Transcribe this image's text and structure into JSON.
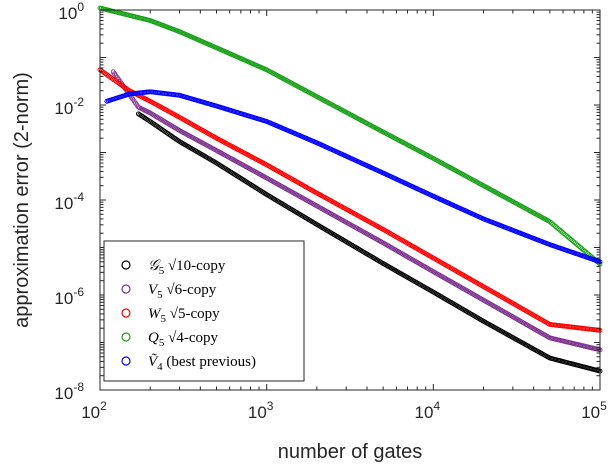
{
  "chart_data": {
    "type": "scatter",
    "xlabel": "number of gates",
    "ylabel": "approximation error (2-norm)",
    "xscale": "log",
    "yscale": "log",
    "xlim": [
      100,
      100000
    ],
    "ylim": [
      1e-08,
      1
    ],
    "x_ticks": [
      {
        "base": "10",
        "exp": "2"
      },
      {
        "base": "10",
        "exp": "3"
      },
      {
        "base": "10",
        "exp": "4"
      },
      {
        "base": "10",
        "exp": "5"
      }
    ],
    "y_ticks": [
      {
        "base": "10",
        "exp": "0"
      },
      {
        "base": "10",
        "exp": "-2"
      },
      {
        "base": "10",
        "exp": "-4"
      },
      {
        "base": "10",
        "exp": "-6"
      },
      {
        "base": "10",
        "exp": "-8"
      }
    ],
    "legend_position": "bottom-left",
    "marker": "open-circle",
    "series": [
      {
        "name_parts": [
          "𝒢",
          "5",
          " √10-copy"
        ],
        "color": "#000000",
        "points": [
          [
            170,
            0.0065
          ],
          [
            200,
            0.0045
          ],
          [
            300,
            0.0017
          ],
          [
            500,
            0.0006
          ],
          [
            1000,
            0.00013
          ],
          [
            2000,
            3.05e-05
          ],
          [
            5000,
            4.6e-06
          ],
          [
            10000,
            1.15e-06
          ],
          [
            20000,
            2.8e-07
          ],
          [
            50000,
            4.7e-08
          ],
          [
            100000,
            2.5e-08
          ]
        ]
      },
      {
        "name_parts": [
          "V",
          "5",
          " √6-copy"
        ],
        "color": "#7e2f8e",
        "points": [
          [
            120,
            0.05
          ],
          [
            170,
            0.009
          ],
          [
            200,
            0.0068
          ],
          [
            300,
            0.0029
          ],
          [
            500,
            0.0011
          ],
          [
            1000,
            0.00029
          ],
          [
            2000,
            7.5e-05
          ],
          [
            5000,
            1.25e-05
          ],
          [
            10000,
            3.1e-06
          ],
          [
            20000,
            7.8e-07
          ],
          [
            50000,
            1.25e-07
          ],
          [
            100000,
            7e-08
          ]
        ]
      },
      {
        "name_parts": [
          "W",
          "5",
          " √5-copy"
        ],
        "color": "#ff0000",
        "points": [
          [
            100,
            0.055
          ],
          [
            150,
            0.02
          ],
          [
            200,
            0.012
          ],
          [
            300,
            0.0055
          ],
          [
            500,
            0.002
          ],
          [
            1000,
            0.00055
          ],
          [
            2000,
            0.00014
          ],
          [
            5000,
            2.4e-05
          ],
          [
            10000,
            6e-06
          ],
          [
            20000,
            1.5e-06
          ],
          [
            50000,
            2.4e-07
          ],
          [
            100000,
            1.8e-07
          ]
        ]
      },
      {
        "name_parts": [
          "Q",
          "5",
          " √4-copy"
        ],
        "color": "#16a016",
        "points": [
          [
            100,
            1.1
          ],
          [
            200,
            0.6
          ],
          [
            300,
            0.35
          ],
          [
            500,
            0.16
          ],
          [
            1000,
            0.055
          ],
          [
            2000,
            0.015
          ],
          [
            5000,
            0.0027
          ],
          [
            10000,
            0.00075
          ],
          [
            20000,
            0.0002
          ],
          [
            50000,
            3.5e-05
          ],
          [
            100000,
            4.5e-06
          ]
        ]
      },
      {
        "name_parts": [
          "Ṽ",
          "4",
          " (best previous)"
        ],
        "color": "#0000ff",
        "points": [
          [
            110,
            0.012
          ],
          [
            150,
            0.017
          ],
          [
            200,
            0.019
          ],
          [
            300,
            0.016
          ],
          [
            500,
            0.0095
          ],
          [
            1000,
            0.0045
          ],
          [
            2000,
            0.0016
          ],
          [
            5000,
            0.00037
          ],
          [
            10000,
            0.00012
          ],
          [
            20000,
            4e-05
          ],
          [
            50000,
            1.15e-05
          ],
          [
            100000,
            5e-06
          ]
        ]
      }
    ]
  }
}
